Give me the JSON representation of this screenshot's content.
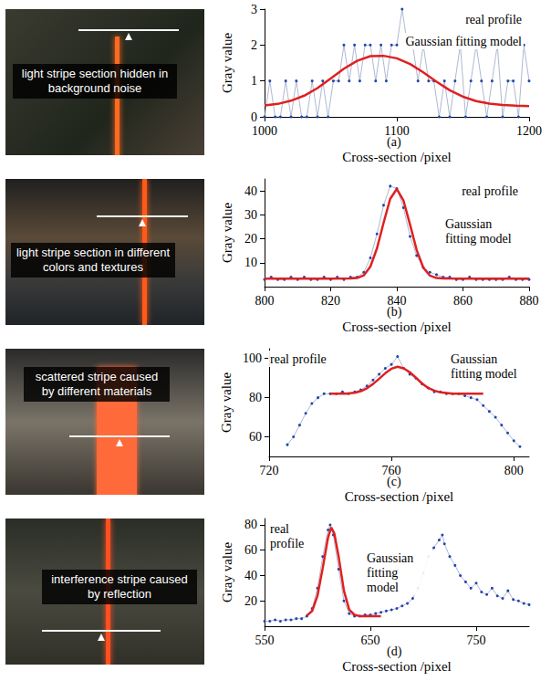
{
  "chart_data": [
    {
      "type": "line",
      "panel_label": "(a)",
      "image_caption": "light stripe section hidden in background noise",
      "x_label": "Cross-section /pixel",
      "y_label": "Gray value",
      "xlim": [
        1000,
        1200
      ],
      "xticks": [
        1000,
        1100,
        1200
      ],
      "ylim": [
        0,
        3
      ],
      "yticks": [
        0,
        1,
        2,
        3
      ],
      "series": [
        {
          "name": "real profile",
          "color": "#2244aa",
          "marker": "circle",
          "x": [
            1000,
            1004,
            1008,
            1012,
            1016,
            1020,
            1024,
            1028,
            1032,
            1036,
            1040,
            1044,
            1048,
            1052,
            1056,
            1060,
            1064,
            1068,
            1072,
            1076,
            1080,
            1084,
            1088,
            1092,
            1096,
            1100,
            1104,
            1108,
            1112,
            1116,
            1120,
            1124,
            1128,
            1132,
            1136,
            1140,
            1144,
            1148,
            1152,
            1156,
            1160,
            1164,
            1168,
            1172,
            1176,
            1180,
            1184,
            1188,
            1192,
            1196,
            1200
          ],
          "values": [
            0,
            1,
            0,
            0,
            1,
            0,
            1,
            0,
            0,
            1,
            0,
            1,
            0,
            1,
            1,
            2,
            1,
            2,
            1,
            2,
            2,
            1,
            2,
            1,
            2,
            2,
            3,
            2,
            2,
            1,
            2,
            1,
            1,
            0,
            1,
            0,
            1,
            2,
            0,
            1,
            2,
            1,
            0,
            1,
            2,
            0,
            1,
            1,
            0,
            2,
            1
          ]
        },
        {
          "name": "Gaussian fitting model",
          "color": "#e02020",
          "marker": "none",
          "x": [
            1000,
            1010,
            1020,
            1030,
            1040,
            1050,
            1060,
            1070,
            1080,
            1090,
            1100,
            1110,
            1120,
            1130,
            1140,
            1150,
            1160,
            1170,
            1180,
            1190,
            1200
          ],
          "values": [
            0.32,
            0.36,
            0.45,
            0.59,
            0.8,
            1.07,
            1.34,
            1.56,
            1.69,
            1.7,
            1.63,
            1.47,
            1.24,
            0.98,
            0.74,
            0.56,
            0.44,
            0.37,
            0.33,
            0.31,
            0.3
          ]
        }
      ]
    },
    {
      "type": "line",
      "panel_label": "(b)",
      "image_caption": "light stripe section in different colors and textures",
      "x_label": "Cross-section /pixel",
      "y_label": "Gray value",
      "xlim": [
        800,
        880
      ],
      "xticks": [
        800,
        820,
        840,
        860,
        880
      ],
      "ylim": [
        0,
        45
      ],
      "yticks": [
        10,
        20,
        30,
        40
      ],
      "series": [
        {
          "name": "real profile",
          "color": "#2244aa",
          "marker": "circle",
          "x": [
            800,
            802,
            804,
            806,
            808,
            810,
            812,
            814,
            816,
            818,
            820,
            822,
            824,
            826,
            828,
            830,
            832,
            834,
            836,
            838,
            840,
            842,
            844,
            846,
            848,
            850,
            852,
            854,
            856,
            858,
            860,
            862,
            864,
            866,
            868,
            870,
            872,
            874,
            876,
            878,
            880
          ],
          "values": [
            3,
            4,
            3,
            3,
            4,
            3,
            4,
            3,
            3,
            4,
            3,
            4,
            3,
            4,
            4,
            6,
            12,
            22,
            34,
            42,
            41,
            33,
            21,
            13,
            8,
            6,
            5,
            4,
            4,
            3,
            3,
            4,
            3,
            3,
            3,
            3,
            3,
            4,
            3,
            3,
            3
          ]
        },
        {
          "name": "Gaussian fitting model",
          "color": "#e02020",
          "marker": "none",
          "x": [
            800,
            810,
            820,
            826,
            828,
            830,
            832,
            834,
            836,
            838,
            840,
            842,
            844,
            846,
            848,
            850,
            852,
            854,
            860,
            870,
            880
          ],
          "values": [
            3.3,
            3.3,
            3.3,
            3.4,
            3.6,
            4.7,
            8.4,
            16.0,
            26.7,
            36.7,
            40.8,
            36.0,
            25.9,
            15.3,
            7.9,
            4.6,
            3.6,
            3.4,
            3.3,
            3.3,
            3.3
          ]
        }
      ]
    },
    {
      "type": "line",
      "panel_label": "(c)",
      "image_caption": "scattered stripe caused by different materials",
      "x_label": "Cross-section /pixel",
      "y_label": "Gray value",
      "xlim": [
        720,
        805
      ],
      "xticks": [
        720,
        760,
        800
      ],
      "ylim": [
        50,
        105
      ],
      "yticks": [
        60,
        80,
        100
      ],
      "series": [
        {
          "name": "real profile",
          "color": "#2244aa",
          "marker": "circle",
          "x": [
            726,
            728,
            730,
            732,
            734,
            736,
            738,
            740,
            742,
            744,
            746,
            748,
            750,
            752,
            754,
            756,
            758,
            760,
            762,
            764,
            766,
            768,
            770,
            772,
            774,
            776,
            778,
            780,
            782,
            784,
            786,
            788,
            790,
            792,
            794,
            796,
            798,
            800,
            802
          ],
          "values": [
            56,
            60,
            66,
            72,
            77,
            80,
            82,
            82,
            82,
            83,
            82,
            83,
            84,
            86,
            89,
            92,
            95,
            97,
            101,
            95,
            92,
            90,
            87,
            85,
            83,
            83,
            82,
            82,
            82,
            81,
            80,
            79,
            76,
            73,
            70,
            66,
            62,
            58,
            55
          ]
        },
        {
          "name": "Gaussian fitting model",
          "color": "#e02020",
          "marker": "none",
          "x": [
            740,
            745,
            748,
            750,
            752,
            754,
            756,
            758,
            760,
            762,
            764,
            766,
            768,
            770,
            772,
            774,
            776,
            780,
            785,
            790
          ],
          "values": [
            82,
            82.1,
            82.5,
            83.3,
            84.8,
            87,
            89.7,
            92.5,
            94.8,
            95.8,
            95,
            93,
            90.2,
            87.3,
            85,
            83.6,
            82.7,
            82.1,
            82,
            82
          ]
        }
      ]
    },
    {
      "type": "line",
      "panel_label": "(d)",
      "image_caption": "interference stripe caused by reflection",
      "x_label": "Cross-section /pixel",
      "y_label": "Gray value",
      "xlim": [
        550,
        800
      ],
      "xticks": [
        550,
        650,
        750
      ],
      "ylim": [
        0,
        85
      ],
      "yticks": [
        20,
        40,
        60,
        80
      ],
      "series": [
        {
          "name": "real profile",
          "color": "#2244aa",
          "marker": "circle",
          "x": [
            550,
            555,
            560,
            565,
            570,
            575,
            580,
            585,
            590,
            595,
            600,
            605,
            610,
            612,
            615,
            620,
            625,
            630,
            635,
            640,
            645,
            650,
            655,
            660,
            665,
            670,
            675,
            680,
            685,
            690,
            695,
            700,
            705,
            710,
            715,
            718,
            720,
            725,
            730,
            735,
            740,
            745,
            750,
            755,
            760,
            765,
            770,
            775,
            780,
            785,
            790,
            795,
            800
          ],
          "values": [
            4,
            4,
            5,
            4,
            5,
            5,
            6,
            6,
            8,
            14,
            30,
            55,
            76,
            80,
            72,
            45,
            20,
            10,
            8,
            8,
            9,
            9,
            10,
            11,
            12,
            13,
            14,
            16,
            18,
            22,
            30,
            42,
            55,
            62,
            68,
            72,
            65,
            55,
            48,
            40,
            35,
            30,
            34,
            27,
            25,
            30,
            24,
            22,
            28,
            21,
            20,
            18,
            17
          ]
        },
        {
          "name": "Gaussian fitting model",
          "color": "#e02020",
          "marker": "none",
          "x": [
            590,
            595,
            600,
            605,
            610,
            613,
            616,
            620,
            625,
            630,
            635,
            640,
            650,
            660
          ],
          "values": [
            8.5,
            12,
            24,
            46,
            70,
            78,
            73,
            55,
            28,
            13,
            9,
            8,
            8,
            8
          ]
        }
      ]
    }
  ]
}
